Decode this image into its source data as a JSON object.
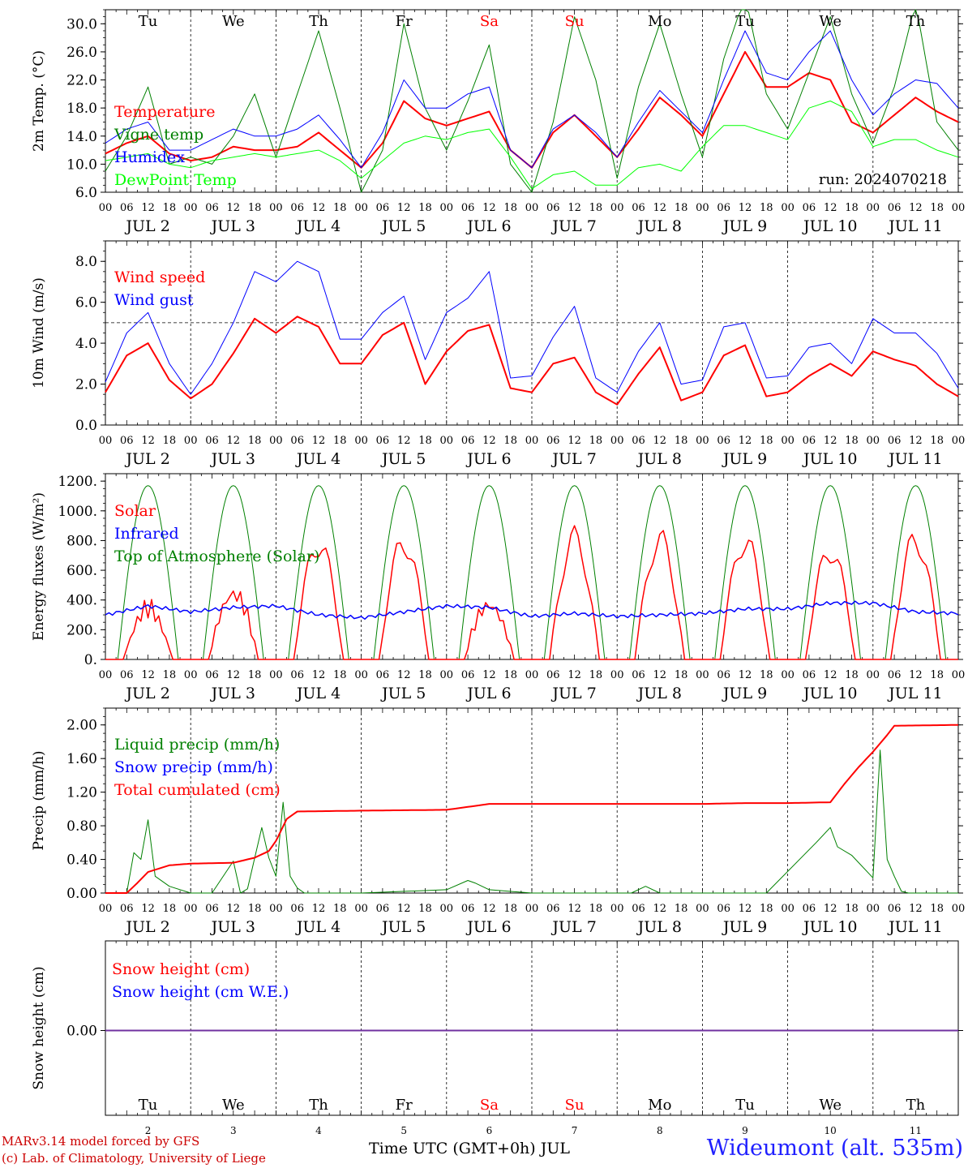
{
  "location": "Wideumont (alt. 535m)",
  "credit": [
    "MARv3.14 model forced by GFS",
    "(c) Lab. of Climatology, University of Liege"
  ],
  "xaxis_title": "Time UTC (GMT+0h) JUL",
  "month": "JUL",
  "dates": [
    "2",
    "3",
    "4",
    "5",
    "6",
    "7",
    "8",
    "9",
    "10",
    "11"
  ],
  "weekdays": [
    "Tu",
    "We",
    "Th",
    "Fr",
    "Sa",
    "Su",
    "Mo",
    "Tu",
    "We",
    "Th"
  ],
  "weekday_colors": [
    "#000000",
    "#000000",
    "#000000",
    "#000000",
    "#ff0000",
    "#ff0000",
    "#000000",
    "#000000",
    "#000000",
    "#000000"
  ],
  "hour_ticks": [
    "00",
    "06",
    "12",
    "18"
  ],
  "chart_data": [
    {
      "type": "line",
      "ylabel": "2m Temp. (°C)",
      "ylim": [
        6,
        32
      ],
      "yticks": [
        "6.0",
        "10.0",
        "14.0",
        "18.0",
        "22.0",
        "26.0",
        "30.0"
      ],
      "annotation": "run: 2024070218",
      "x_hours": [
        0,
        6,
        12,
        18,
        24,
        30,
        36,
        42,
        48,
        54,
        60,
        66,
        72,
        78,
        84,
        90,
        96,
        102,
        108,
        114,
        120,
        126,
        132,
        138,
        144,
        150,
        156,
        162,
        168,
        174,
        180,
        186,
        192,
        198,
        204,
        210,
        216,
        222,
        228,
        234,
        240
      ],
      "series": [
        {
          "name": "Temperature",
          "color": "#ff0000",
          "values": [
            11.5,
            13,
            14,
            11.5,
            10.5,
            11,
            12.5,
            12,
            12,
            12.5,
            14.5,
            12,
            9.5,
            13,
            19,
            16.5,
            15.5,
            16.5,
            17.5,
            12,
            9.5,
            14.5,
            17,
            14,
            11,
            15,
            19.5,
            17,
            14,
            20,
            26,
            21,
            21,
            23,
            22,
            16,
            14.5,
            17,
            19.5,
            17.5,
            16
          ]
        },
        {
          "name": "Vigne temp",
          "color": "#008000",
          "values": [
            9,
            14,
            21,
            10,
            11,
            10,
            14,
            20,
            11,
            20,
            29,
            18,
            6,
            12,
            30,
            18,
            12,
            19,
            27,
            10,
            6,
            16,
            31,
            22,
            8,
            21,
            30,
            20,
            11,
            25,
            34,
            20,
            15,
            23,
            31,
            20,
            13,
            21,
            33,
            16,
            12
          ]
        },
        {
          "name": "Humidex",
          "color": "#0000ff",
          "values": [
            13,
            15,
            16,
            12,
            12,
            13.5,
            15,
            14,
            14,
            15,
            17,
            13.5,
            9.5,
            14.5,
            22,
            18,
            18,
            20,
            21,
            12,
            9.5,
            15,
            17,
            14.5,
            11,
            16,
            20.5,
            17.5,
            14.5,
            22,
            29,
            23,
            22,
            26,
            29,
            22,
            17,
            20,
            22,
            21.5,
            18
          ]
        },
        {
          "name": "DewPoint Temp",
          "color": "#00ff00",
          "values": [
            10.5,
            11,
            11.5,
            10,
            9.5,
            10.5,
            11,
            11.5,
            11,
            11.5,
            12,
            10.5,
            8,
            10.5,
            13,
            14,
            13.5,
            14.5,
            15,
            11,
            6.5,
            8.5,
            9,
            7,
            7,
            9.5,
            10,
            9,
            12.5,
            15.5,
            15.5,
            14.5,
            13.5,
            18,
            19,
            17.5,
            12.5,
            13.5,
            13.5,
            12,
            11
          ]
        }
      ]
    },
    {
      "type": "line",
      "ylabel": "10m Wind (m/s)",
      "ylim": [
        0,
        9
      ],
      "yticks": [
        "0.0",
        "2.0",
        "4.0",
        "6.0",
        "8.0"
      ],
      "reference_line": 5,
      "x_hours": [
        0,
        6,
        12,
        18,
        24,
        30,
        36,
        42,
        48,
        54,
        60,
        66,
        72,
        78,
        84,
        90,
        96,
        102,
        108,
        114,
        120,
        126,
        132,
        138,
        144,
        150,
        156,
        162,
        168,
        174,
        180,
        186,
        192,
        198,
        204,
        210,
        216,
        222,
        228,
        234,
        240
      ],
      "series": [
        {
          "name": "Wind speed",
          "color": "#ff0000",
          "values": [
            1.6,
            3.4,
            4.0,
            2.2,
            1.3,
            2.0,
            3.5,
            5.2,
            4.5,
            5.3,
            4.8,
            3.0,
            3.0,
            4.4,
            5.0,
            2.0,
            3.6,
            4.6,
            4.9,
            1.8,
            1.6,
            3.0,
            3.3,
            1.6,
            1.0,
            2.5,
            3.8,
            1.2,
            1.6,
            3.4,
            3.9,
            1.4,
            1.6,
            2.4,
            3.0,
            2.4,
            3.6,
            3.2,
            2.9,
            2.0,
            1.4
          ]
        },
        {
          "name": "Wind gust",
          "color": "#0000ff",
          "values": [
            2.1,
            4.5,
            5.5,
            3.0,
            1.5,
            3.0,
            5.0,
            7.5,
            7.0,
            8.0,
            7.5,
            4.2,
            4.2,
            5.5,
            6.3,
            3.2,
            5.5,
            6.2,
            7.5,
            2.3,
            2.4,
            4.3,
            5.8,
            2.3,
            1.6,
            3.6,
            5.0,
            2.0,
            2.2,
            4.8,
            5.0,
            2.3,
            2.4,
            3.8,
            4.0,
            3.0,
            5.2,
            4.5,
            4.5,
            3.5,
            1.8
          ]
        }
      ]
    },
    {
      "type": "line",
      "ylabel": "Energy fluxes (W/m²)",
      "ylim": [
        0,
        1250
      ],
      "yticks": [
        "0.",
        "200.",
        "400.",
        "600.",
        "800.",
        "1000.",
        "1200."
      ],
      "series": [
        {
          "name": "Solar",
          "color": "#ff0000",
          "peaks": [
            430,
            580,
            860,
            870,
            480,
            900,
            890,
            880,
            810,
            890
          ]
        },
        {
          "name": "Infrared",
          "color": "#0000ff",
          "x_hours": [
            0,
            12,
            24,
            36,
            48,
            60,
            72,
            84,
            96,
            108,
            120,
            132,
            144,
            156,
            168,
            180,
            192,
            204,
            216,
            228,
            240
          ],
          "values": [
            300,
            360,
            320,
            350,
            360,
            300,
            280,
            320,
            360,
            350,
            290,
            310,
            290,
            300,
            310,
            340,
            340,
            380,
            380,
            320,
            310
          ]
        },
        {
          "name": "Top of Atmosphere (Solar)",
          "color": "#008000",
          "peak": 1170
        }
      ]
    },
    {
      "type": "line",
      "ylabel": "Precip (mm/h)",
      "ylim": [
        0,
        2.2
      ],
      "yticks": [
        "0.00",
        "0.40",
        "0.80",
        "1.20",
        "1.60",
        "2.00"
      ],
      "series": [
        {
          "name": "Liquid precip (mm/h)",
          "color": "#008000",
          "x_hours": [
            0,
            6,
            8,
            10,
            12,
            14,
            18,
            24,
            30,
            36,
            38,
            40,
            44,
            46,
            48,
            50,
            52,
            54,
            56,
            60,
            72,
            96,
            102,
            104,
            108,
            120,
            132,
            138,
            148,
            152,
            156,
            162,
            164,
            168,
            172,
            174,
            176,
            180,
            186,
            200,
            204,
            206,
            210,
            216,
            218,
            220,
            222,
            224,
            226,
            228,
            232,
            240
          ],
          "values": [
            0,
            0,
            0.48,
            0.4,
            0.87,
            0.2,
            0.08,
            0,
            0,
            0.38,
            0,
            0.05,
            0.78,
            0.42,
            0.2,
            1.08,
            0.2,
            0.06,
            0,
            0,
            0,
            0.04,
            0.15,
            0.12,
            0.04,
            0,
            0,
            0,
            0,
            0.08,
            0,
            0,
            0,
            0,
            0,
            0,
            0,
            0,
            0,
            0.6,
            0.78,
            0.55,
            0.45,
            0.18,
            1.7,
            0.4,
            0.2,
            0.02,
            0,
            0,
            0,
            0
          ]
        },
        {
          "name": "Snow precip (mm/h)",
          "color": "#0000ff",
          "values": []
        },
        {
          "name": "Total cumulated (cm)",
          "color": "#ff0000",
          "x_hours": [
            0,
            6,
            9,
            12,
            18,
            24,
            36,
            42,
            46,
            48,
            51,
            54,
            72,
            96,
            108,
            144,
            168,
            180,
            192,
            204,
            208,
            212,
            216,
            220,
            222,
            240
          ],
          "values": [
            0,
            0,
            0.12,
            0.25,
            0.33,
            0.35,
            0.36,
            0.42,
            0.5,
            0.62,
            0.88,
            0.97,
            0.98,
            0.99,
            1.06,
            1.06,
            1.06,
            1.07,
            1.07,
            1.08,
            1.3,
            1.5,
            1.68,
            1.88,
            1.99,
            2.0
          ]
        }
      ]
    },
    {
      "type": "line",
      "ylabel": "Snow height (cm)",
      "yticks": [
        "0.00"
      ],
      "series": [
        {
          "name": "Snow height (cm)",
          "color": "#ff0000",
          "values": [
            0,
            0
          ]
        },
        {
          "name": "Snow height (cm W.E.)",
          "color": "#0000ff",
          "values": [
            0,
            0
          ]
        }
      ]
    }
  ]
}
